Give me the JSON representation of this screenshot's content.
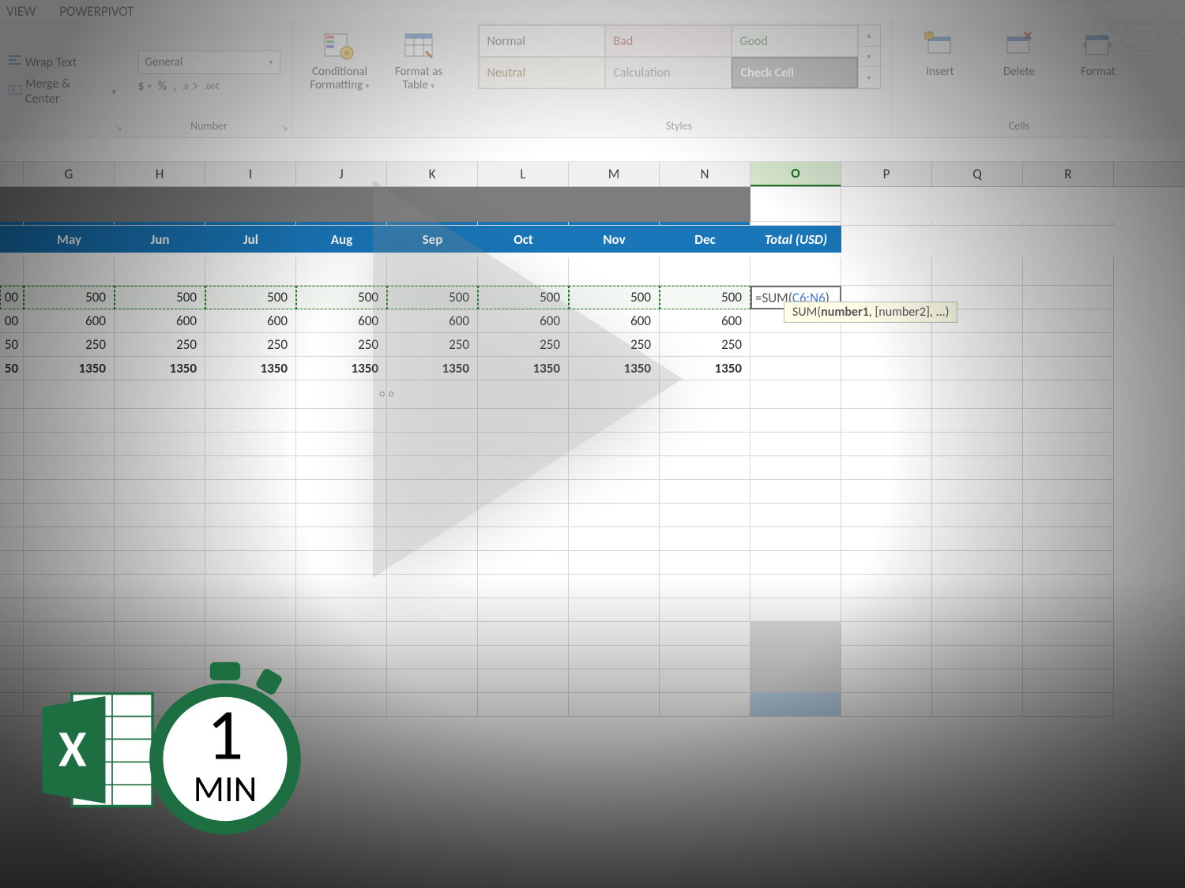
{
  "tabs": {
    "view": "VIEW",
    "powerpivot": "POWERPIVOT"
  },
  "ribbon": {
    "alignment": {
      "wrap": "Wrap Text",
      "merge": "Merge & Center"
    },
    "number": {
      "label": "Number",
      "format": "General",
      "currency": "$",
      "percent": "%",
      "comma": ",",
      "inc": ".0",
      "dec": ".00"
    },
    "cond_fmt": "Conditional\nFormatting",
    "fmt_table": "Format as\nTable",
    "styles": {
      "label": "Styles",
      "normal": "Normal",
      "bad": "Bad",
      "good": "Good",
      "neutral": "Neutral",
      "calc": "Calculation",
      "check": "Check Cell"
    },
    "cells": {
      "label": "Cells",
      "insert": "Insert",
      "delete": "Delete",
      "format": "Format"
    }
  },
  "columns": [
    "",
    "G",
    "H",
    "I",
    "J",
    "K",
    "L",
    "M",
    "N",
    "O",
    "P",
    "Q",
    "R"
  ],
  "selected_col": "O",
  "table": {
    "headers": [
      "May",
      "Jun",
      "Jul",
      "Aug",
      "Sep",
      "Oct",
      "Nov",
      "Dec",
      "Total (USD)"
    ],
    "rows": [
      {
        "left": "00",
        "vals": [
          500,
          500,
          500,
          500,
          500,
          500,
          500,
          500
        ]
      },
      {
        "left": "00",
        "vals": [
          600,
          600,
          600,
          600,
          600,
          600,
          600,
          600
        ]
      },
      {
        "left": "50",
        "vals": [
          250,
          250,
          250,
          250,
          250,
          250,
          250,
          250
        ]
      },
      {
        "left": "50",
        "vals": [
          1350,
          1350,
          1350,
          1350,
          1350,
          1350,
          1350,
          1350
        ],
        "bold": true
      }
    ]
  },
  "formula": {
    "prefix": "=SUM(",
    "ref": "C6:N6",
    "suffix": ")"
  },
  "tooltip": {
    "fn": "SUM(",
    "bold": "number1",
    "rest": ", [number2], ...)"
  },
  "badge": {
    "one": "1",
    "min": "MIN"
  }
}
